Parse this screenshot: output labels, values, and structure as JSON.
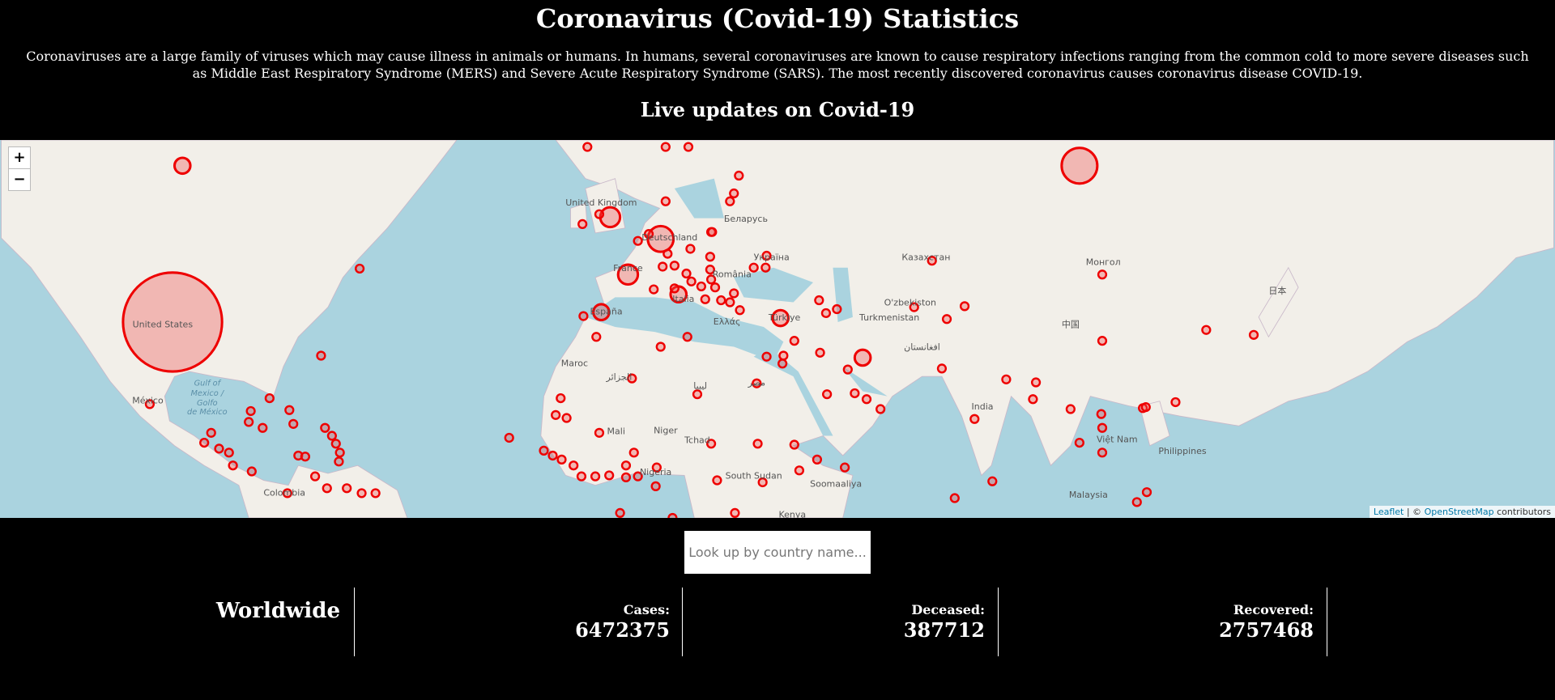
{
  "header": {
    "title": "Coronavirus (Covid-19) Statistics",
    "description": "Coronaviruses are a large family of viruses which may cause illness in animals or humans. In humans, several coronaviruses are known to cause respiratory infections ranging from the common cold to more severe diseases such as Middle East Respiratory Syndrome (MERS) and Severe Acute Respiratory Syndrome (SARS). The most recently discovered coronavirus causes coronavirus disease COVID-19.",
    "subtitle": "Live updates on Covid-19"
  },
  "map": {
    "zoom_in": "+",
    "zoom_out": "−",
    "labels": [
      "United States",
      "México",
      "Colombia",
      "Gulf of",
      "Mexico /",
      "Golfo",
      "de México",
      "United Kingdom",
      "Deutschland",
      "France",
      "España",
      "Italia",
      "Ελλάς",
      "Türkiye",
      "Беларусь",
      "Україна",
      "România",
      "Казахстан",
      "Монгол",
      "中国",
      "日本",
      "O'zbekiston",
      "Turkmenistan",
      "افغانستان",
      "India",
      "Việt Nam",
      "Philippines",
      "Malaysia",
      "Mali",
      "Niger",
      "Tchad",
      "Nigeria",
      "South Sudan",
      "Soomaaliya",
      "Kenya",
      "Maroc",
      "ليبيا",
      "مصر",
      "الجزائر"
    ],
    "attribution": {
      "leaflet": "Leaflet",
      "separator": "| ©",
      "osm": "OpenStreetMap",
      "suffix": "contributors"
    }
  },
  "search": {
    "placeholder": "Look up by country name..."
  },
  "stats": {
    "label": "Worldwide",
    "items": [
      {
        "label": "Cases:",
        "value": 6472375
      },
      {
        "label": "Deceased:",
        "value": 387712
      },
      {
        "label": "Recovered:",
        "value": 2757468
      }
    ]
  }
}
